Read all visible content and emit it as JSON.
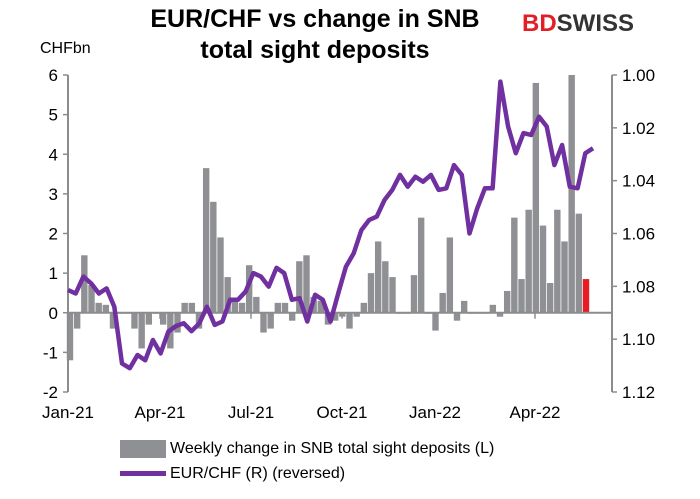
{
  "title": "EUR/CHF vs change in SNB total sight deposits",
  "logo": {
    "part1": "BD",
    "part2": "SWISS"
  },
  "chart_data": {
    "type": "bar+line",
    "title": "EUR/CHF vs change in SNB total sight deposits",
    "ylabel_left": "CHFbn",
    "ylim_left": [
      -2,
      6
    ],
    "yticks_left": [
      "6",
      "5",
      "4",
      "3",
      "2",
      "1",
      "0",
      "-1",
      "-2"
    ],
    "ylim_right": [
      1.0,
      1.12
    ],
    "right_axis_reversed": true,
    "yticks_right": [
      "1.00",
      "1.02",
      "1.04",
      "1.06",
      "1.08",
      "1.10",
      "1.12"
    ],
    "xticks": [
      "Jan-21",
      "Apr-21",
      "Jul-21",
      "Oct-21",
      "Jan-22",
      "Apr-22"
    ],
    "grid": false,
    "legend_position": "bottom",
    "series": [
      {
        "name": "Weekly change in SNB total sight deposits (L)",
        "type": "bar",
        "axis": "left",
        "color": "#8f9094",
        "highlight_last_color": "#e81c24",
        "values": [
          -1.2,
          -0.4,
          1.45,
          0.7,
          0.25,
          0.2,
          -0.4,
          0,
          0,
          -0.4,
          -0.9,
          -0.3,
          0,
          -0.3,
          -0.9,
          -0.5,
          0.25,
          0.25,
          -0.4,
          3.65,
          2.8,
          1.9,
          0.9,
          0.3,
          0.25,
          1.2,
          0.4,
          -0.5,
          -0.4,
          0.25,
          0.25,
          -0.2,
          1.3,
          1.45,
          0.4,
          0.3,
          -0.3,
          -0.2,
          -0.1,
          -0.4,
          -0.1,
          0.25,
          1.0,
          1.8,
          1.3,
          0.9,
          0,
          0,
          0.95,
          2.4,
          0,
          -0.45,
          0.5,
          1.9,
          -0.2,
          0.3,
          0,
          0,
          0,
          0.2,
          -0.1,
          0.55,
          2.4,
          0.85,
          2.6,
          5.8,
          2.2,
          0.75,
          2.6,
          1.8,
          6.0,
          2.5,
          0.85
        ]
      },
      {
        "name": "EUR/CHF (R) (reversed)",
        "type": "line",
        "axis": "right",
        "color": "#7030a0",
        "values": [
          1.0814,
          1.0827,
          1.0763,
          1.0789,
          1.0827,
          1.0808,
          1.0877,
          1.1092,
          1.111,
          1.106,
          1.108,
          1.1003,
          1.1054,
          1.0971,
          1.095,
          1.094,
          1.097,
          1.094,
          1.0877,
          1.0946,
          1.0933,
          1.0851,
          1.0851,
          1.082,
          1.075,
          1.0763,
          1.0801,
          1.073,
          1.075,
          1.0851,
          1.0845,
          1.0933,
          1.0832,
          1.0851,
          1.0933,
          1.0827,
          1.0726,
          1.0675,
          1.0587,
          1.0549,
          1.0536,
          1.0473,
          1.0435,
          1.0378,
          1.0423,
          1.0385,
          1.0404,
          1.0378,
          1.0435,
          1.0429,
          1.0341,
          1.0378,
          1.06,
          1.0505,
          1.0429,
          1.0429,
          1.0025,
          1.0195,
          1.0296,
          1.022,
          1.0227,
          1.0158,
          1.0195,
          1.0341,
          1.0265,
          1.0423,
          1.0429,
          1.0296,
          1.0277
        ]
      }
    ]
  },
  "legend": {
    "bar_label": "Weekly change in SNB total sight deposits (L)",
    "line_label": "EUR/CHF (R) (reversed)"
  }
}
